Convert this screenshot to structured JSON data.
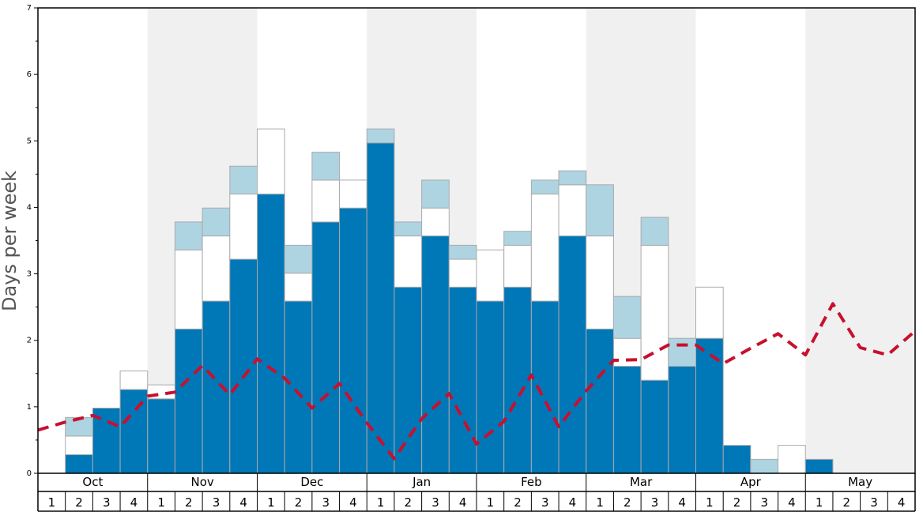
{
  "chart_data": {
    "type": "bar",
    "ylabel": "Days per week",
    "ylim": [
      0,
      7
    ],
    "yticks": [
      0,
      1,
      2,
      3,
      4,
      5,
      6,
      7
    ],
    "months": [
      "Oct",
      "Nov",
      "Dec",
      "Jan",
      "Feb",
      "Mar",
      "Apr",
      "May"
    ],
    "week_labels": [
      "1",
      "2",
      "3",
      "4"
    ],
    "colors": {
      "dark": "#0077b6",
      "white": "#ffffff",
      "light": "#aed4e2",
      "line": "#c8102e",
      "shade": "#f0f0f0",
      "bar_stroke": "#aaaaaa"
    },
    "series": [
      {
        "values": [
          0,
          0.28,
          0.98,
          1.26,
          1.12,
          2.17,
          2.59,
          3.22,
          4.2,
          2.59,
          3.78,
          3.99,
          4.97,
          2.8,
          3.57,
          2.8,
          2.59,
          2.8,
          2.59,
          3.57,
          2.17,
          1.61,
          1.4,
          1.61,
          2.03,
          0.42,
          0,
          0,
          0.21,
          0,
          0,
          0
        ]
      },
      {
        "values": [
          0,
          0.28,
          0,
          0.28,
          0.21,
          1.19,
          0.98,
          0.98,
          0.98,
          0.42,
          0.63,
          0.42,
          0,
          0.77,
          0.42,
          0.42,
          0.77,
          0.63,
          1.61,
          0.77,
          1.4,
          0.42,
          2.03,
          0,
          0.77,
          0,
          0,
          0.42,
          0,
          0,
          0,
          0
        ]
      },
      {
        "values": [
          0,
          0.28,
          0,
          0,
          0,
          0.42,
          0.42,
          0.42,
          0,
          0.42,
          0.42,
          0,
          0.21,
          0.21,
          0.42,
          0.21,
          0,
          0.21,
          0.21,
          0.21,
          0.77,
          0.63,
          0.42,
          0.42,
          0,
          0,
          0.21,
          0,
          0,
          0,
          0,
          0
        ]
      }
    ],
    "line": [
      0.65,
      0.77,
      0.87,
      0.7,
      1.16,
      1.22,
      1.62,
      1.18,
      1.72,
      1.43,
      0.98,
      1.35,
      0.76,
      0.22,
      0.82,
      1.2,
      0.44,
      0.78,
      1.48,
      0.7,
      1.24,
      1.7,
      1.71,
      1.93,
      1.93,
      1.65,
      1.88,
      2.1,
      1.78,
      2.55,
      1.89,
      1.78,
      2.14
    ]
  }
}
